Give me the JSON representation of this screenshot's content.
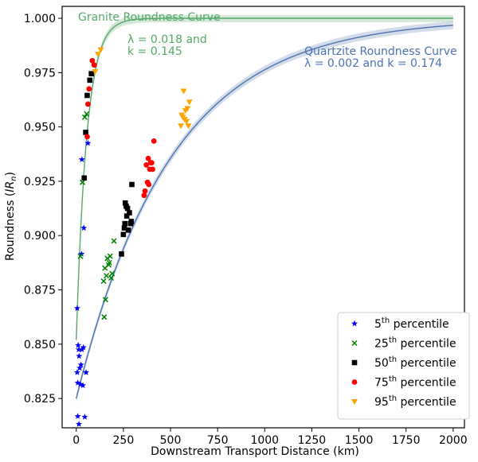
{
  "chart_data": {
    "type": "scatter",
    "xlabel": "Downstream Transport Distance (km)",
    "ylabel_main": "Roundness (",
    "ylabel_var": "IR",
    "ylabel_sub": "n",
    "ylabel_end": ")",
    "xlim": [
      -75,
      2060
    ],
    "ylim": [
      0.8115,
      1.0055
    ],
    "xticks": [
      "0",
      "250",
      "500",
      "750",
      "1000",
      "1250",
      "1500",
      "1750",
      "2000"
    ],
    "yticks": [
      "0.825",
      "0.850",
      "0.875",
      "0.900",
      "0.925",
      "0.950",
      "0.975",
      "1.000"
    ],
    "grid": false,
    "legend_position": "bottom-right",
    "colors": {
      "granite": "#55a868",
      "quartzite": "#4c72b0",
      "p5": "#0000ff",
      "p25": "#008000",
      "p50": "#000000",
      "p75": "#ff0000",
      "p95": "#ffa500"
    },
    "curves": [
      {
        "name": "Granite Roundness Curve",
        "note_line1": "λ = 0.018 and",
        "note_line2": "k = 0.145",
        "lambda": 0.018,
        "k": 0.145,
        "x_start": 0,
        "x_end": 2000,
        "y0": 0.852
      },
      {
        "name": "Quartzite Roundness Curve",
        "note_line1": "λ = 0.002 and k = 0.174",
        "lambda": 0.002,
        "k": 0.174,
        "x_start": 0,
        "x_end": 2000,
        "y0": 0.825
      }
    ],
    "series": [
      {
        "name": "5",
        "suffix": "th",
        "label": "percentile",
        "marker": "star",
        "points": [
          [
            5,
            0.8665
          ],
          [
            8,
            0.8168
          ],
          [
            14,
            0.8132
          ],
          [
            10,
            0.8495
          ],
          [
            13,
            0.8475
          ],
          [
            5,
            0.837
          ],
          [
            18,
            0.839
          ],
          [
            22,
            0.8315
          ],
          [
            25,
            0.8405
          ],
          [
            30,
            0.8475
          ],
          [
            38,
            0.8485
          ],
          [
            45,
            0.8165
          ],
          [
            35,
            0.831
          ],
          [
            52,
            0.837
          ],
          [
            28,
            0.8915
          ],
          [
            40,
            0.9035
          ],
          [
            30,
            0.935
          ],
          [
            62,
            0.9425
          ],
          [
            8,
            0.8322
          ],
          [
            15,
            0.8445
          ]
        ]
      },
      {
        "name": "25",
        "suffix": "th",
        "label": "percentile",
        "marker": "x",
        "points": [
          [
            22,
            0.8905
          ],
          [
            33,
            0.9245
          ],
          [
            45,
            0.9545
          ],
          [
            55,
            0.956
          ],
          [
            148,
            0.8625
          ],
          [
            155,
            0.8705
          ],
          [
            145,
            0.879
          ],
          [
            152,
            0.885
          ],
          [
            165,
            0.8895
          ],
          [
            175,
            0.8875
          ],
          [
            180,
            0.8905
          ],
          [
            185,
            0.8805
          ],
          [
            190,
            0.8825
          ],
          [
            200,
            0.8975
          ],
          [
            160,
            0.8815
          ],
          [
            172,
            0.8865
          ]
        ]
      },
      {
        "name": "50",
        "suffix": "th",
        "label": "percentile",
        "marker": "square",
        "points": [
          [
            42,
            0.9265
          ],
          [
            50,
            0.9475
          ],
          [
            58,
            0.9645
          ],
          [
            72,
            0.9715
          ],
          [
            80,
            0.9745
          ],
          [
            240,
            0.8915
          ],
          [
            250,
            0.9005
          ],
          [
            255,
            0.9035
          ],
          [
            260,
            0.915
          ],
          [
            268,
            0.909
          ],
          [
            272,
            0.9125
          ],
          [
            276,
            0.9025
          ],
          [
            282,
            0.9105
          ],
          [
            288,
            0.9055
          ],
          [
            292,
            0.9065
          ],
          [
            295,
            0.9235
          ],
          [
            265,
            0.9135
          ],
          [
            258,
            0.9055
          ]
        ]
      },
      {
        "name": "75",
        "suffix": "th",
        "label": "percentile",
        "marker": "circle",
        "points": [
          [
            58,
            0.9455
          ],
          [
            62,
            0.9605
          ],
          [
            68,
            0.9675
          ],
          [
            85,
            0.9805
          ],
          [
            95,
            0.9785
          ],
          [
            360,
            0.9185
          ],
          [
            365,
            0.9205
          ],
          [
            372,
            0.9325
          ],
          [
            378,
            0.9245
          ],
          [
            382,
            0.9355
          ],
          [
            385,
            0.9235
          ],
          [
            390,
            0.9305
          ],
          [
            395,
            0.9335
          ],
          [
            400,
            0.9335
          ],
          [
            405,
            0.9305
          ],
          [
            412,
            0.9435
          ]
        ]
      },
      {
        "name": "95",
        "suffix": "th",
        "label": "percentile",
        "marker": "triangle",
        "points": [
          [
            100,
            0.9755
          ],
          [
            115,
            0.9835
          ],
          [
            130,
            0.9855
          ],
          [
            555,
            0.9505
          ],
          [
            560,
            0.9555
          ],
          [
            565,
            0.9545
          ],
          [
            570,
            0.9665
          ],
          [
            575,
            0.9535
          ],
          [
            580,
            0.9575
          ],
          [
            585,
            0.9525
          ],
          [
            590,
            0.9585
          ],
          [
            595,
            0.9505
          ],
          [
            600,
            0.9615
          ]
        ]
      }
    ]
  }
}
